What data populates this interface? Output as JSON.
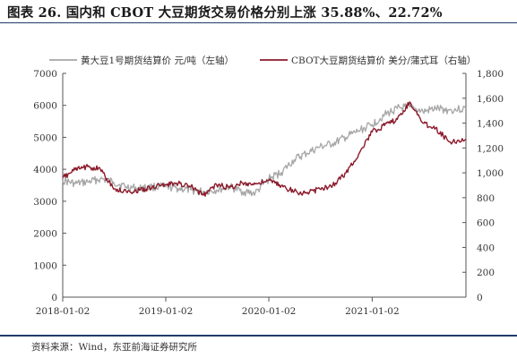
{
  "figure": {
    "title": "图表 26. 国内和 CBOT 大豆期货交易价格分别上涨 35.88%、22.72%",
    "source": "资料来源：Wind，东亚前海证券研究所"
  },
  "colors": {
    "left_series": "#a6a6a6",
    "right_series": "#8b1a2b",
    "axis": "#555555",
    "title_rule": "#1f3a6b"
  },
  "chart_data": {
    "type": "line",
    "title": "",
    "xlabel": "",
    "ylabel_left": "",
    "ylabel_right": "",
    "grid": false,
    "legend_position": "top",
    "x_range": [
      "2018-01-02",
      "2021-11-30"
    ],
    "x_ticks": [
      "2018-01-02",
      "2019-01-02",
      "2020-01-02",
      "2021-01-02"
    ],
    "y_left": {
      "min": 0,
      "max": 7000,
      "ticks": [
        0,
        1000,
        2000,
        3000,
        4000,
        5000,
        6000,
        7000
      ]
    },
    "y_right": {
      "min": 0,
      "max": 1800,
      "ticks": [
        0,
        200,
        400,
        600,
        800,
        1000,
        1200,
        1400,
        1600,
        1800
      ]
    },
    "series": [
      {
        "name": "黄大豆1号期货结算价 元/吨（左轴）",
        "axis": "left",
        "x": [
          "2018-01-02",
          "2018-02-15",
          "2018-04-01",
          "2018-05-15",
          "2018-07-01",
          "2018-08-15",
          "2018-10-01",
          "2018-11-15",
          "2019-01-02",
          "2019-02-15",
          "2019-04-01",
          "2019-05-15",
          "2019-07-01",
          "2019-08-15",
          "2019-10-01",
          "2019-11-15",
          "2020-01-02",
          "2020-02-15",
          "2020-04-01",
          "2020-05-15",
          "2020-07-01",
          "2020-08-15",
          "2020-10-01",
          "2020-11-15",
          "2021-01-02",
          "2021-02-15",
          "2021-04-01",
          "2021-05-15",
          "2021-07-01",
          "2021-08-15",
          "2021-10-01",
          "2021-11-30"
        ],
        "values": [
          3650,
          3550,
          3600,
          3700,
          3600,
          3450,
          3400,
          3450,
          3450,
          3400,
          3350,
          3300,
          3350,
          3450,
          3300,
          3250,
          3700,
          3900,
          4300,
          4500,
          4700,
          4800,
          5000,
          5200,
          5400,
          5700,
          5900,
          5950,
          5800,
          5900,
          5850,
          5900
        ]
      },
      {
        "name": "CBOT大豆期货结算价 美分/蒲式耳（右轴）",
        "axis": "right",
        "x": [
          "2018-01-02",
          "2018-02-15",
          "2018-04-01",
          "2018-05-15",
          "2018-07-01",
          "2018-08-15",
          "2018-10-01",
          "2018-11-15",
          "2019-01-02",
          "2019-02-15",
          "2019-04-01",
          "2019-05-15",
          "2019-07-01",
          "2019-08-15",
          "2019-10-01",
          "2019-11-15",
          "2020-01-02",
          "2020-02-15",
          "2020-04-01",
          "2020-05-15",
          "2020-07-01",
          "2020-08-15",
          "2020-10-01",
          "2020-11-15",
          "2021-01-02",
          "2021-02-15",
          "2021-04-01",
          "2021-05-15",
          "2021-07-01",
          "2021-08-15",
          "2021-10-01",
          "2021-11-30"
        ],
        "values": [
          960,
          1025,
          1050,
          1030,
          870,
          850,
          860,
          885,
          905,
          915,
          890,
          820,
          905,
          880,
          920,
          910,
          940,
          895,
          850,
          835,
          870,
          900,
          1000,
          1150,
          1330,
          1380,
          1430,
          1570,
          1400,
          1360,
          1250,
          1270
        ]
      }
    ]
  }
}
